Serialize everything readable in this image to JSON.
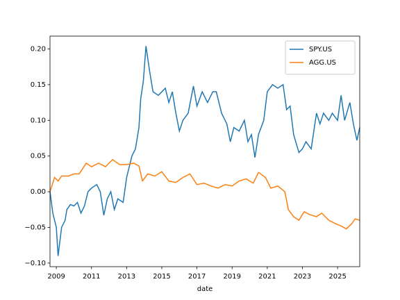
{
  "chart_data": {
    "type": "line",
    "xlabel": "date",
    "xlim": [
      2008.64,
      2026.26
    ],
    "xticks": [
      2009,
      2011,
      2013,
      2015,
      2017,
      2019,
      2021,
      2023,
      2025
    ],
    "ylim": [
      -0.105,
      0.218
    ],
    "yticks": [
      {
        "value": -0.1,
        "label": "−0.10"
      },
      {
        "value": -0.05,
        "label": "−0.05"
      },
      {
        "value": 0,
        "label": "0.00"
      },
      {
        "value": 0.05,
        "label": "0.05"
      },
      {
        "value": 0.1,
        "label": "0.10"
      },
      {
        "value": 0.15,
        "label": "0.15"
      },
      {
        "value": 0.2,
        "label": "0.20"
      }
    ],
    "legend": "upper right",
    "grid": false,
    "series": [
      {
        "name": "SPY.US",
        "color": "#1f77b4",
        "x": [
          2008.64,
          2008.8,
          2009.0,
          2009.1,
          2009.3,
          2009.5,
          2009.6,
          2009.8,
          2010.0,
          2010.2,
          2010.4,
          2010.6,
          2010.8,
          2011.0,
          2011.3,
          2011.5,
          2011.7,
          2011.9,
          2012.1,
          2012.3,
          2012.5,
          2012.8,
          2013.0,
          2013.3,
          2013.5,
          2013.7,
          2013.8,
          2013.95,
          2014.1,
          2014.3,
          2014.5,
          2014.8,
          2015.0,
          2015.2,
          2015.4,
          2015.6,
          2015.8,
          2016.0,
          2016.2,
          2016.5,
          2016.8,
          2017.0,
          2017.3,
          2017.6,
          2017.9,
          2018.1,
          2018.4,
          2018.7,
          2018.9,
          2019.1,
          2019.4,
          2019.7,
          2019.9,
          2020.1,
          2020.3,
          2020.5,
          2020.8,
          2021.0,
          2021.3,
          2021.6,
          2021.9,
          2022.1,
          2022.3,
          2022.5,
          2022.8,
          2023.0,
          2023.2,
          2023.5,
          2023.8,
          2024.0,
          2024.2,
          2024.5,
          2024.7,
          2025.0,
          2025.2,
          2025.4,
          2025.7,
          2025.9,
          2026.1,
          2026.26
        ],
        "values": [
          0.0,
          -0.03,
          -0.05,
          -0.09,
          -0.05,
          -0.04,
          -0.025,
          -0.018,
          -0.02,
          -0.015,
          -0.03,
          -0.02,
          0.0,
          0.005,
          0.01,
          0.0,
          -0.033,
          -0.01,
          0.0,
          -0.025,
          -0.01,
          -0.015,
          0.02,
          0.05,
          0.06,
          0.09,
          0.13,
          0.155,
          0.204,
          0.17,
          0.14,
          0.135,
          0.14,
          0.145,
          0.125,
          0.14,
          0.11,
          0.085,
          0.1,
          0.11,
          0.148,
          0.12,
          0.14,
          0.125,
          0.14,
          0.14,
          0.11,
          0.095,
          0.07,
          0.09,
          0.085,
          0.1,
          0.07,
          0.08,
          0.048,
          0.08,
          0.1,
          0.14,
          0.15,
          0.145,
          0.15,
          0.115,
          0.12,
          0.08,
          0.055,
          0.06,
          0.07,
          0.06,
          0.11,
          0.095,
          0.11,
          0.1,
          0.11,
          0.1,
          0.135,
          0.1,
          0.125,
          0.095,
          0.072,
          0.09
        ]
      },
      {
        "name": "AGG.US",
        "color": "#ff7f0e",
        "x": [
          2008.64,
          2008.9,
          2009.1,
          2009.3,
          2009.7,
          2010.0,
          2010.3,
          2010.7,
          2011.0,
          2011.4,
          2011.8,
          2012.2,
          2012.6,
          2013.0,
          2013.4,
          2013.7,
          2013.9,
          2014.2,
          2014.6,
          2015.0,
          2015.4,
          2015.8,
          2016.2,
          2016.6,
          2017.0,
          2017.4,
          2017.8,
          2018.2,
          2018.6,
          2019.0,
          2019.4,
          2019.8,
          2020.2,
          2020.5,
          2020.9,
          2021.2,
          2021.6,
          2022.0,
          2022.2,
          2022.5,
          2022.8,
          2023.1,
          2023.4,
          2023.8,
          2024.1,
          2024.5,
          2024.9,
          2025.2,
          2025.5,
          2025.8,
          2026.0,
          2026.26
        ],
        "values": [
          0.0,
          0.02,
          0.015,
          0.022,
          0.022,
          0.025,
          0.025,
          0.04,
          0.035,
          0.04,
          0.035,
          0.045,
          0.038,
          0.038,
          0.04,
          0.036,
          0.015,
          0.025,
          0.022,
          0.028,
          0.015,
          0.013,
          0.02,
          0.025,
          0.01,
          0.012,
          0.008,
          0.005,
          0.01,
          0.008,
          0.015,
          0.018,
          0.012,
          0.027,
          0.02,
          0.005,
          0.008,
          0.0,
          -0.025,
          -0.035,
          -0.04,
          -0.028,
          -0.032,
          -0.035,
          -0.03,
          -0.04,
          -0.045,
          -0.048,
          -0.052,
          -0.045,
          -0.038,
          -0.04
        ]
      }
    ]
  }
}
